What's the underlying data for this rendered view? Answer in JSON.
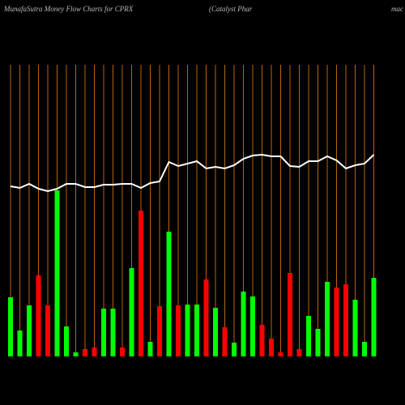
{
  "chart_data": {
    "type": "bar",
    "title": "MunafaSutra  Money Flow  Charts for CPRX",
    "subtitle": "(Catalyst Phar",
    "subtitle_tail": "mac",
    "categories": [
      null,
      null,
      null,
      null,
      null,
      null,
      null,
      null,
      null,
      null,
      null,
      null,
      null,
      null,
      null,
      null,
      null,
      null,
      null,
      null,
      null,
      null,
      null,
      null,
      null,
      null,
      null,
      null,
      null,
      null,
      null,
      null,
      null,
      null,
      null,
      null,
      null,
      null,
      null,
      null
    ],
    "values": [
      73,
      32,
      63,
      100,
      63,
      205,
      37,
      5,
      9,
      11,
      59,
      59,
      11,
      109,
      180,
      18,
      62,
      154,
      63,
      64,
      64,
      95,
      60,
      36,
      17,
      80,
      74,
      39,
      22,
      5,
      103,
      9,
      50,
      34,
      92,
      85,
      89,
      70,
      18,
      97
    ],
    "colors": [
      "#00ff00",
      "#00ff00",
      "#00ff00",
      "#ff0000",
      "#ff0000",
      "#00ff00",
      "#00ff00",
      "#00ff00",
      "#ff0000",
      "#ff0000",
      "#00ff00",
      "#00ff00",
      "#ff0000",
      "#00ff00",
      "#ff0000",
      "#00ff00",
      "#ff0000",
      "#00ff00",
      "#ff0000",
      "#00ff00",
      "#00ff00",
      "#ff0000",
      "#00ff00",
      "#ff0000",
      "#00ff00",
      "#00ff00",
      "#00ff00",
      "#ff0000",
      "#ff0000",
      "#ff0000",
      "#ff0000",
      "#ff0000",
      "#00ff00",
      "#00ff00",
      "#00ff00",
      "#ff0000",
      "#ff0000",
      "#00ff00",
      "#00ff00",
      "#00ff00"
    ],
    "line": {
      "color": "#ffffff",
      "values": [
        210,
        208,
        213,
        207,
        204,
        207,
        213,
        213,
        209,
        209,
        212,
        212,
        213,
        213,
        208,
        214,
        216,
        240,
        235,
        238,
        241,
        232,
        234,
        232,
        236,
        244,
        248,
        249,
        247,
        247,
        235,
        234,
        241,
        241,
        247,
        242,
        232,
        236,
        238,
        249
      ]
    },
    "grid_color": "#b8650f",
    "ylim": [
      0,
      360
    ]
  }
}
